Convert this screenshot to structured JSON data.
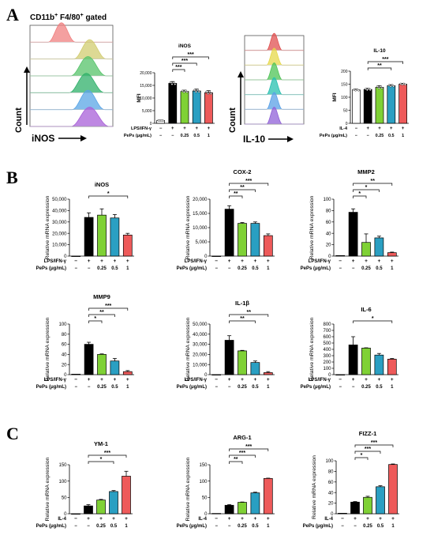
{
  "figure": {
    "panel_labels": [
      "A",
      "B",
      "C"
    ],
    "gate_label_main": "CD11b",
    "gate_label_sup1": "+",
    "gate_label_mid": " F4/80",
    "gate_label_sup2": "+",
    "gate_label_end": " gated",
    "flow_panels": [
      {
        "ylabel": "Count",
        "xlabel": "iNOS",
        "colors": [
          "#f08080",
          "#d2cc70",
          "#55c36a",
          "#2fb06a",
          "#5aa5e6",
          "#a860d8"
        ]
      },
      {
        "ylabel": "Count",
        "xlabel": "IL-10",
        "colors": [
          "#e05050",
          "#e6d84a",
          "#4ec455",
          "#26c0b0",
          "#5aa0e6",
          "#9060d8"
        ]
      }
    ]
  },
  "colors": {
    "black": "#000000",
    "green": "#7fd135",
    "blue": "#2a9fc2",
    "red": "#ee5a5a",
    "white": "#ffffff"
  },
  "chart_data": [
    {
      "id": "A-iNOS-MFI",
      "type": "bar",
      "title": "iNOS",
      "ylabel": "MFI",
      "ylim": [
        0,
        20000
      ],
      "yticks": [
        0,
        5000,
        10000,
        15000,
        20000
      ],
      "ytick_labels": [
        "0",
        "5,000",
        "10,000",
        "15,000",
        "20,000"
      ],
      "values": [
        1100,
        15800,
        12600,
        12800,
        12100
      ],
      "errors": [
        150,
        700,
        500,
        700,
        800
      ],
      "bar_colors": [
        "white",
        "black",
        "green",
        "blue",
        "red"
      ],
      "treatment_label": "LPS/IFN-γ",
      "treatment_row": [
        "−",
        "+",
        "+",
        "+",
        "+"
      ],
      "dose_label": "PePs (μg/mL)",
      "dose_row": [
        "−",
        "−",
        "0.25",
        "0.5",
        "1"
      ],
      "sig": [
        {
          "from": 1,
          "to": 2,
          "label": "***"
        },
        {
          "from": 1,
          "to": 3,
          "label": "***"
        },
        {
          "from": 1,
          "to": 4,
          "label": "***"
        }
      ],
      "points": true
    },
    {
      "id": "A-IL10-MFI",
      "type": "bar",
      "title": "IL-10",
      "ylabel": "MFI",
      "ylim": [
        0,
        200
      ],
      "yticks": [
        0,
        50,
        100,
        150,
        200
      ],
      "ytick_labels": [
        "0",
        "50",
        "100",
        "150",
        "200"
      ],
      "values": [
        128,
        130,
        138,
        144,
        150
      ],
      "errors": [
        3,
        4,
        6,
        4,
        3
      ],
      "bar_colors": [
        "white",
        "black",
        "green",
        "blue",
        "red"
      ],
      "treatment_label": "IL-4",
      "treatment_row": [
        "−",
        "+",
        "+",
        "+",
        "+"
      ],
      "dose_label": "PePs (μg/mL)",
      "dose_row": [
        "−",
        "−",
        "0.25",
        "0.5",
        "1"
      ],
      "sig": [
        {
          "from": 1,
          "to": 3,
          "label": "**"
        },
        {
          "from": 1,
          "to": 4,
          "label": "***"
        }
      ],
      "points": true
    },
    {
      "id": "B-iNOS",
      "type": "bar",
      "title": "iNOS",
      "ylabel": "Relative mRNA expression",
      "ylim": [
        0,
        50000
      ],
      "yticks": [
        0,
        10000,
        20000,
        30000,
        40000,
        50000
      ],
      "ytick_labels": [
        "0",
        "10,000",
        "20,000",
        "30,000",
        "40,000",
        "50,000"
      ],
      "values": [
        0,
        34000,
        36000,
        33500,
        18500
      ],
      "errors": [
        0,
        4000,
        5500,
        3000,
        1500
      ],
      "bar_colors": [
        "white",
        "black",
        "green",
        "blue",
        "red"
      ],
      "treatment_label": "LPS/IFN-γ",
      "treatment_row": [
        "−",
        "+",
        "+",
        "+",
        "+"
      ],
      "dose_label": "PePs (μg/mL)",
      "dose_row": [
        "−",
        "−",
        "0.25",
        "0.5",
        "1"
      ],
      "sig": [
        {
          "from": 1,
          "to": 4,
          "label": "*"
        }
      ]
    },
    {
      "id": "B-COX2",
      "type": "bar",
      "title": "COX-2",
      "ylabel": "Relative mRNA expression",
      "ylim": [
        0,
        20000
      ],
      "yticks": [
        0,
        5000,
        10000,
        15000,
        20000
      ],
      "ytick_labels": [
        "0",
        "5,000",
        "10,000",
        "15,000",
        "20,000"
      ],
      "values": [
        0,
        16500,
        11500,
        11500,
        7200
      ],
      "errors": [
        0,
        1200,
        300,
        500,
        600
      ],
      "bar_colors": [
        "white",
        "black",
        "green",
        "blue",
        "red"
      ],
      "treatment_label": "LPS/IFN-γ",
      "treatment_row": [
        "−",
        "+",
        "+",
        "+",
        "+"
      ],
      "dose_label": "PePs (μg/mL)",
      "dose_row": [
        "−",
        "−",
        "0.25",
        "0.5",
        "1"
      ],
      "sig": [
        {
          "from": 1,
          "to": 2,
          "label": "**"
        },
        {
          "from": 1,
          "to": 3,
          "label": "**"
        },
        {
          "from": 1,
          "to": 4,
          "label": "***"
        }
      ]
    },
    {
      "id": "B-MMP2",
      "type": "bar",
      "title": "MMP2",
      "ylabel": "Relative mRNA expression",
      "ylim": [
        0,
        100
      ],
      "yticks": [
        0,
        20,
        40,
        60,
        80,
        100
      ],
      "ytick_labels": [
        "0",
        "20",
        "40",
        "60",
        "80",
        "100"
      ],
      "values": [
        1,
        77,
        24,
        32,
        6
      ],
      "errors": [
        0,
        6,
        15,
        3,
        1
      ],
      "bar_colors": [
        "white",
        "black",
        "green",
        "blue",
        "red"
      ],
      "treatment_label": "LPS/IFN-γ",
      "treatment_row": [
        "−",
        "+",
        "+",
        "+",
        "+"
      ],
      "dose_label": "PePs (μg/mL)",
      "dose_row": [
        "−",
        "−",
        "0.25",
        "0.5",
        "1"
      ],
      "sig": [
        {
          "from": 1,
          "to": 2,
          "label": "*"
        },
        {
          "from": 1,
          "to": 3,
          "label": "*"
        },
        {
          "from": 1,
          "to": 4,
          "label": "**"
        }
      ]
    },
    {
      "id": "B-MMP9",
      "type": "bar",
      "title": "MMP9",
      "ylabel": "Relative mRNA expression",
      "ylim": [
        0,
        100
      ],
      "yticks": [
        0,
        20,
        40,
        60,
        80,
        100
      ],
      "ytick_labels": [
        "0",
        "20",
        "40",
        "60",
        "80",
        "100"
      ],
      "values": [
        1,
        60,
        40,
        27,
        6
      ],
      "errors": [
        0,
        4,
        1,
        5,
        2
      ],
      "bar_colors": [
        "white",
        "black",
        "green",
        "blue",
        "red"
      ],
      "treatment_label": "LPS/IFN-γ",
      "treatment_row": [
        "−",
        "+",
        "+",
        "+",
        "+"
      ],
      "dose_label": "PePs (μg/mL)",
      "dose_row": [
        "−",
        "−",
        "0.25",
        "0.5",
        "1"
      ],
      "sig": [
        {
          "from": 1,
          "to": 2,
          "label": "*"
        },
        {
          "from": 1,
          "to": 3,
          "label": "**"
        },
        {
          "from": 1,
          "to": 4,
          "label": "***"
        }
      ]
    },
    {
      "id": "B-IL1b",
      "type": "bar",
      "title": "IL-1β",
      "ylabel": "Relative mRNA expression",
      "ylim": [
        0,
        50000
      ],
      "yticks": [
        0,
        10000,
        20000,
        30000,
        40000,
        50000
      ],
      "ytick_labels": [
        "0",
        "10,000",
        "20,000",
        "30,000",
        "40,000",
        "50,000"
      ],
      "values": [
        0,
        34000,
        23500,
        12000,
        2000
      ],
      "errors": [
        0,
        4500,
        500,
        1500,
        1000
      ],
      "bar_colors": [
        "white",
        "black",
        "green",
        "blue",
        "red"
      ],
      "treatment_label": "LPS/IFN-γ",
      "treatment_row": [
        "−",
        "+",
        "+",
        "+",
        "+"
      ],
      "dose_label": "PePs (μg/mL)",
      "dose_row": [
        "−",
        "−",
        "0.25",
        "0.5",
        "1"
      ],
      "sig": [
        {
          "from": 1,
          "to": 3,
          "label": "**"
        },
        {
          "from": 1,
          "to": 4,
          "label": "**"
        }
      ]
    },
    {
      "id": "B-IL6",
      "type": "bar",
      "title": "IL-6",
      "ylabel": "Relative mRNA expression",
      "ylim": [
        0,
        800
      ],
      "yticks": [
        0,
        100,
        200,
        300,
        400,
        500,
        600,
        700,
        800
      ],
      "ytick_labels": [
        "0",
        "100",
        "200",
        "300",
        "400",
        "500",
        "600",
        "700",
        "800"
      ],
      "values": [
        0,
        470,
        420,
        310,
        245
      ],
      "errors": [
        0,
        130,
        5,
        25,
        10
      ],
      "bar_colors": [
        "white",
        "black",
        "green",
        "blue",
        "red"
      ],
      "treatment_label": "LPS/IFN-γ",
      "treatment_row": [
        "−",
        "+",
        "+",
        "+",
        "+"
      ],
      "dose_label": "PePs (μg/mL)",
      "dose_row": [
        "−",
        "−",
        "0.25",
        "0.5",
        "1"
      ],
      "sig": [
        {
          "from": 1,
          "to": 4,
          "label": "*"
        }
      ]
    },
    {
      "id": "C-YM1",
      "type": "bar",
      "title": "YM-1",
      "ylabel": "Relative mRNA expression",
      "ylim": [
        0,
        150
      ],
      "yticks": [
        0,
        50,
        100,
        150
      ],
      "ytick_labels": [
        "0",
        "50",
        "100",
        "150"
      ],
      "values": [
        0,
        24,
        42,
        68,
        115
      ],
      "errors": [
        0,
        4,
        2,
        3,
        15
      ],
      "bar_colors": [
        "white",
        "black",
        "green",
        "blue",
        "red"
      ],
      "treatment_label": "IL-4",
      "treatment_row": [
        "−",
        "+",
        "+",
        "+",
        "+"
      ],
      "dose_label": "PePs (μg/mL)",
      "dose_row": [
        "−",
        "−",
        "0.25",
        "0.5",
        "1"
      ],
      "sig": [
        {
          "from": 1,
          "to": 3,
          "label": "*"
        },
        {
          "from": 1,
          "to": 4,
          "label": "***"
        }
      ]
    },
    {
      "id": "C-ARG1",
      "type": "bar",
      "title": "ARG-1",
      "ylabel": "Relative mRNA expression",
      "ylim": [
        0,
        150
      ],
      "yticks": [
        0,
        50,
        100,
        150
      ],
      "ytick_labels": [
        "0",
        "50",
        "100",
        "150"
      ],
      "values": [
        1,
        26,
        35,
        64,
        108
      ],
      "errors": [
        0,
        2,
        1,
        2,
        1
      ],
      "bar_colors": [
        "white",
        "black",
        "green",
        "blue",
        "red"
      ],
      "treatment_label": "IL-4",
      "treatment_row": [
        "−",
        "+",
        "+",
        "+",
        "+"
      ],
      "dose_label": "PePs (μg/mL)",
      "dose_row": [
        "−",
        "−",
        "0.25",
        "0.5",
        "1"
      ],
      "sig": [
        {
          "from": 1,
          "to": 2,
          "label": "**"
        },
        {
          "from": 1,
          "to": 3,
          "label": "***"
        },
        {
          "from": 1,
          "to": 4,
          "label": "***"
        }
      ]
    },
    {
      "id": "C-FIZZ1",
      "type": "bar",
      "title": "FIZZ-1",
      "ylabel": "Relative mRNA expression",
      "ylim": [
        0,
        100
      ],
      "yticks": [
        0,
        20,
        40,
        60,
        80,
        100
      ],
      "ytick_labels": [
        "0",
        "20",
        "40",
        "60",
        "80",
        "100"
      ],
      "values": [
        1,
        22,
        31,
        51,
        93
      ],
      "errors": [
        0,
        1,
        2,
        2,
        1
      ],
      "bar_colors": [
        "white",
        "black",
        "green",
        "blue",
        "red"
      ],
      "treatment_label": "IL-4",
      "treatment_row": [
        "−",
        "+",
        "+",
        "+",
        "+"
      ],
      "dose_label": "PePs (μg/mL)",
      "dose_row": [
        "−",
        "−",
        "0.25",
        "0.5",
        "1"
      ],
      "sig": [
        {
          "from": 1,
          "to": 2,
          "label": "*"
        },
        {
          "from": 1,
          "to": 3,
          "label": "***"
        },
        {
          "from": 1,
          "to": 4,
          "label": "***"
        }
      ]
    }
  ]
}
